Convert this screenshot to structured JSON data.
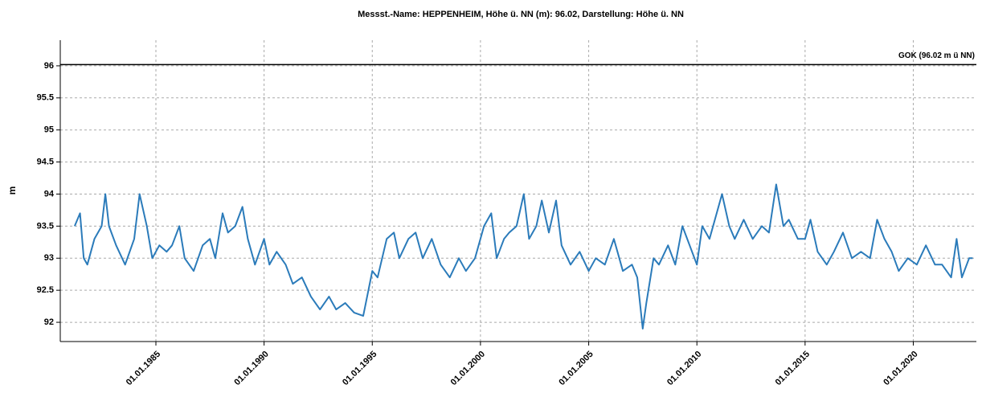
{
  "chart_data": {
    "type": "line",
    "title": "Messst.-Name: HEPPENHEIM, Höhe ü. NN (m): 96.02, Darstellung: Höhe ü. NN",
    "y_label": "m",
    "reference_line": {
      "value": 96.02,
      "label": "GOK (96.02 m ü NN)"
    },
    "x": [
      "1981-04-01",
      "1981-07-01",
      "1981-09-01",
      "1981-11-01",
      "1982-03-01",
      "1982-07-01",
      "1982-09-01",
      "1982-11-01",
      "1983-03-01",
      "1983-08-01",
      "1984-01-01",
      "1984-04-01",
      "1984-08-01",
      "1984-11-01",
      "1985-03-01",
      "1985-07-01",
      "1985-10-01",
      "1986-02-01",
      "1986-05-01",
      "1986-10-01",
      "1987-03-01",
      "1987-07-01",
      "1987-10-01",
      "1988-02-01",
      "1988-05-01",
      "1988-09-01",
      "1989-01-01",
      "1989-04-01",
      "1989-08-01",
      "1990-01-01",
      "1990-04-01",
      "1990-08-01",
      "1991-01-01",
      "1991-05-01",
      "1991-10-01",
      "1992-03-01",
      "1992-08-01",
      "1993-01-01",
      "1993-05-01",
      "1993-10-01",
      "1994-03-01",
      "1994-08-01",
      "1995-01-01",
      "1995-04-01",
      "1995-09-01",
      "1996-01-01",
      "1996-04-01",
      "1996-09-01",
      "1997-01-01",
      "1997-05-01",
      "1997-10-01",
      "1998-03-01",
      "1998-08-01",
      "1999-01-01",
      "1999-05-01",
      "1999-10-01",
      "2000-03-01",
      "2000-07-01",
      "2000-10-01",
      "2001-02-01",
      "2001-05-01",
      "2001-09-01",
      "2002-01-01",
      "2002-04-01",
      "2002-08-01",
      "2002-11-01",
      "2003-03-01",
      "2003-07-01",
      "2003-10-01",
      "2004-03-01",
      "2004-08-01",
      "2005-01-01",
      "2005-05-01",
      "2005-10-01",
      "2006-03-01",
      "2006-08-01",
      "2007-01-01",
      "2007-04-01",
      "2007-07-01",
      "2007-09-01",
      "2008-01-01",
      "2008-04-01",
      "2008-09-01",
      "2009-01-01",
      "2009-05-01",
      "2009-09-01",
      "2010-01-01",
      "2010-04-01",
      "2010-08-01",
      "2010-11-01",
      "2011-03-01",
      "2011-07-01",
      "2011-10-01",
      "2012-03-01",
      "2012-08-01",
      "2013-01-01",
      "2013-05-01",
      "2013-09-01",
      "2014-01-01",
      "2014-04-01",
      "2014-09-01",
      "2015-01-01",
      "2015-04-01",
      "2015-08-01",
      "2016-01-01",
      "2016-05-01",
      "2016-10-01",
      "2017-03-01",
      "2017-08-01",
      "2018-01-01",
      "2018-05-01",
      "2018-09-01",
      "2019-01-01",
      "2019-05-01",
      "2019-10-01",
      "2020-03-01",
      "2020-08-01",
      "2021-01-01",
      "2021-05-01",
      "2021-10-01",
      "2022-01-01",
      "2022-04-01",
      "2022-08-01",
      "2022-10-01"
    ],
    "series": [
      {
        "name": "Höhe ü. NN",
        "color": "#2b7bba",
        "values": [
          93.5,
          93.7,
          93.0,
          92.9,
          93.3,
          93.5,
          94.0,
          93.5,
          93.2,
          92.9,
          93.3,
          94.0,
          93.5,
          93.0,
          93.2,
          93.1,
          93.2,
          93.5,
          93.0,
          92.8,
          93.2,
          93.3,
          93.0,
          93.7,
          93.4,
          93.5,
          93.8,
          93.3,
          92.9,
          93.3,
          92.9,
          93.1,
          92.9,
          92.6,
          92.7,
          92.4,
          92.2,
          92.4,
          92.2,
          92.3,
          92.15,
          92.1,
          92.8,
          92.7,
          93.3,
          93.4,
          93.0,
          93.3,
          93.4,
          93.0,
          93.3,
          92.9,
          92.7,
          93.0,
          92.8,
          93.0,
          93.5,
          93.7,
          93.0,
          93.3,
          93.4,
          93.5,
          94.0,
          93.3,
          93.5,
          93.9,
          93.4,
          93.9,
          93.2,
          92.9,
          93.1,
          92.8,
          93.0,
          92.9,
          93.3,
          92.8,
          92.9,
          92.7,
          91.9,
          92.3,
          93.0,
          92.9,
          93.2,
          92.9,
          93.5,
          93.2,
          92.9,
          93.5,
          93.3,
          93.6,
          94.0,
          93.5,
          93.3,
          93.6,
          93.3,
          93.5,
          93.4,
          94.15,
          93.5,
          93.6,
          93.3,
          93.3,
          93.6,
          93.1,
          92.9,
          93.1,
          93.4,
          93.0,
          93.1,
          93.0,
          93.6,
          93.3,
          93.1,
          92.8,
          93.0,
          92.9,
          93.2,
          92.9,
          92.9,
          92.7,
          93.3,
          92.7,
          93.0,
          93.0
        ]
      }
    ],
    "xlim": [
      "1980-08-01",
      "2022-12-01"
    ],
    "xticks": [
      {
        "value": "1985-01-01",
        "label": "01.01.1985"
      },
      {
        "value": "1990-01-01",
        "label": "01.01.1990"
      },
      {
        "value": "1995-01-01",
        "label": "01.01.1995"
      },
      {
        "value": "2000-01-01",
        "label": "01.01.2000"
      },
      {
        "value": "2005-01-01",
        "label": "01.01.2005"
      },
      {
        "value": "2010-01-01",
        "label": "01.01.2010"
      },
      {
        "value": "2015-01-01",
        "label": "01.01.2015"
      },
      {
        "value": "2020-01-01",
        "label": "01.01.2020"
      }
    ],
    "ylim": [
      91.7,
      96.4
    ],
    "yticks": [
      92,
      92.5,
      93,
      93.5,
      94,
      94.5,
      95,
      95.5,
      96
    ],
    "grid": true
  }
}
